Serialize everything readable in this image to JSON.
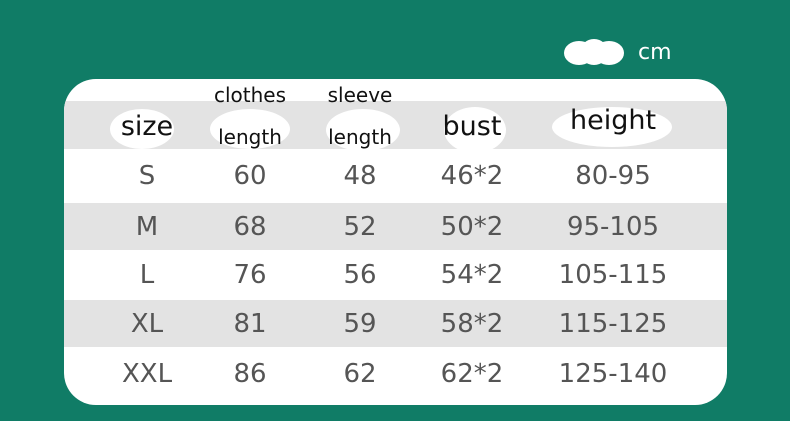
{
  "unit_label": "cm",
  "colors": {
    "background": "#107c66",
    "card": "#ffffff",
    "band": "#e3e3e3"
  },
  "table": {
    "headers": [
      {
        "line1": "",
        "line2": "size"
      },
      {
        "line1": "clothes",
        "line2": "length"
      },
      {
        "line1": "sleeve",
        "line2": "length"
      },
      {
        "line1": "",
        "line2": "bust"
      },
      {
        "line1": "",
        "line2": "height"
      }
    ],
    "rows": [
      [
        "S",
        "60",
        "48",
        "46*2",
        "80-95"
      ],
      [
        "M",
        "68",
        "52",
        "50*2",
        "95-105"
      ],
      [
        "L",
        "76",
        "56",
        "54*2",
        "105-115"
      ],
      [
        "XL",
        "81",
        "59",
        "58*2",
        "115-125"
      ],
      [
        "XXL",
        "86",
        "62",
        "62*2",
        "125-140"
      ]
    ]
  }
}
